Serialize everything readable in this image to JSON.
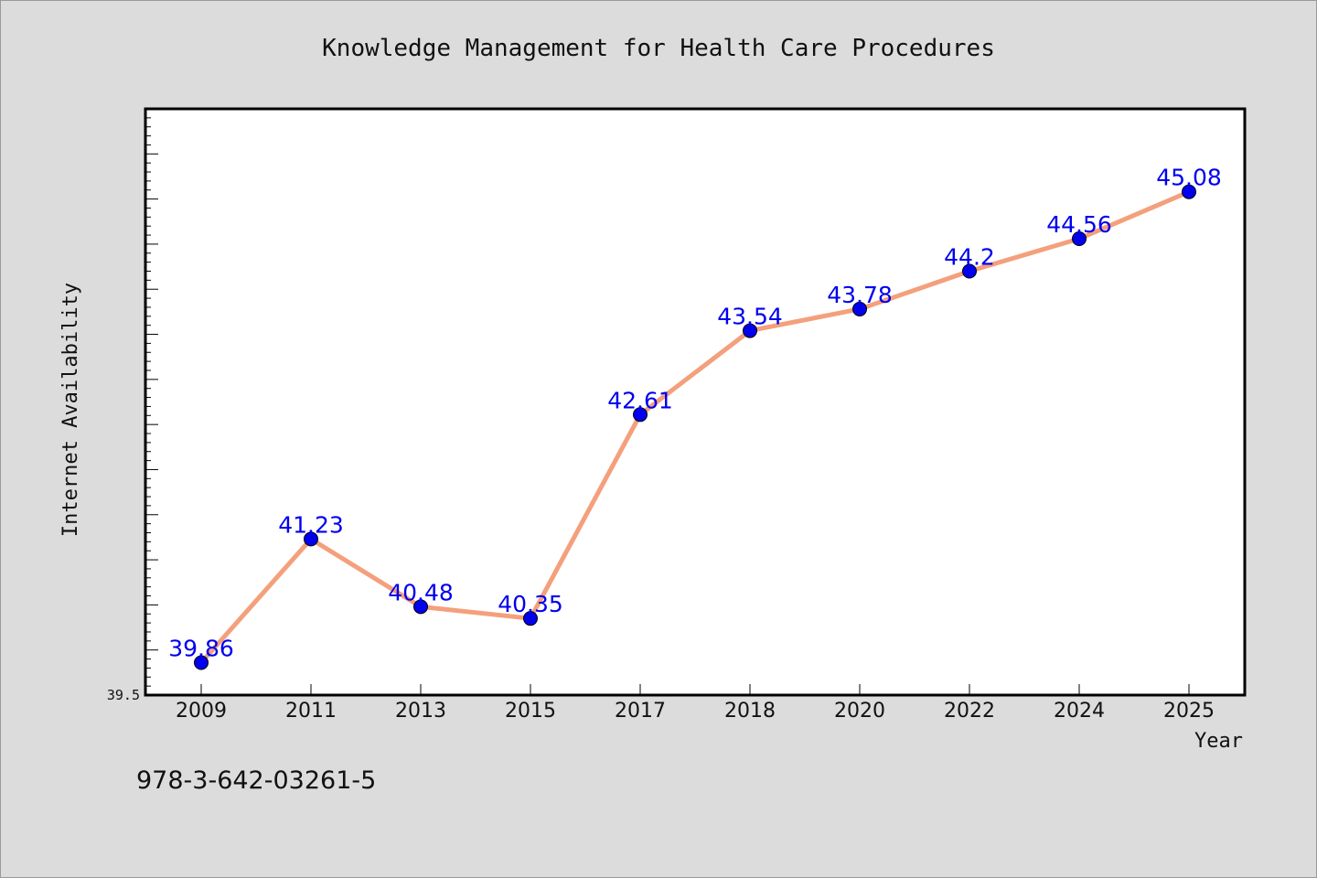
{
  "chart_data": {
    "type": "line",
    "title": "Knowledge Management for Health Care Procedures",
    "xlabel": "Year",
    "ylabel": "Internet Availability",
    "categories": [
      "2009",
      "2011",
      "2013",
      "2015",
      "2017",
      "2018",
      "2020",
      "2022",
      "2024",
      "2025"
    ],
    "series": [
      {
        "values": [
          39.86,
          41.23,
          40.48,
          40.35,
          42.61,
          43.54,
          43.78,
          44.2,
          44.56,
          45.08
        ],
        "labels": [
          "39.86",
          "41.23",
          "40.48",
          "40.35",
          "42.61",
          "43.54",
          "43.78",
          "44.2",
          "44.56",
          "45.08"
        ]
      }
    ],
    "yticks": [
      "39.5"
    ],
    "ylim": [
      39.5,
      46.0
    ],
    "grid": false,
    "colors": {
      "line": "#f4a07c",
      "marker": "#0000ee",
      "label": "#0000ee",
      "plot_bg": "#ffffff",
      "page_bg": "#dcdcdc"
    }
  },
  "footer_text": "978-3-642-03261-5"
}
